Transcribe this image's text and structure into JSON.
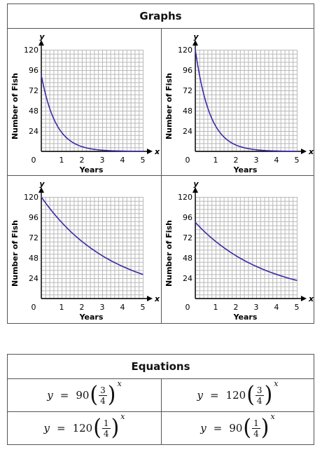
{
  "graphs_table": {
    "header": "Graphs"
  },
  "equations_table": {
    "header": "Equations",
    "equations": [
      {
        "lhs": "y",
        "eq": "=",
        "coef": "90",
        "num": "3",
        "den": "4",
        "exp": "x"
      },
      {
        "lhs": "y",
        "eq": "=",
        "coef": "120",
        "num": "3",
        "den": "4",
        "exp": "x"
      },
      {
        "lhs": "y",
        "eq": "=",
        "coef": "120",
        "num": "1",
        "den": "4",
        "exp": "x"
      },
      {
        "lhs": "y",
        "eq": "=",
        "coef": "90",
        "num": "1",
        "den": "4",
        "exp": "x"
      }
    ]
  },
  "chart_data": [
    {
      "type": "line",
      "xlabel": "Years",
      "ylabel": "Number of Fish",
      "x_axis_letter": "x",
      "y_axis_letter": "y",
      "xlim": [
        0,
        5
      ],
      "ylim": [
        0,
        120
      ],
      "grid": true,
      "x_ticks": [
        "0",
        "1",
        "2",
        "3",
        "4",
        "5"
      ],
      "y_ticks": [
        "24",
        "48",
        "72",
        "96",
        "120"
      ],
      "line_color": "#3b2aa6",
      "x": [
        0,
        0.5,
        1,
        1.5,
        2,
        2.5,
        3,
        3.5,
        4,
        4.5,
        5
      ],
      "values": [
        90,
        45,
        22.5,
        11.3,
        5.6,
        2.8,
        1.4,
        0.7,
        0.4,
        0.2,
        0.1
      ]
    },
    {
      "type": "line",
      "xlabel": "Years",
      "ylabel": "Number of Fish",
      "x_axis_letter": "x",
      "y_axis_letter": "y",
      "xlim": [
        0,
        5
      ],
      "ylim": [
        0,
        120
      ],
      "grid": true,
      "x_ticks": [
        "0",
        "1",
        "2",
        "3",
        "4",
        "5"
      ],
      "y_ticks": [
        "24",
        "48",
        "72",
        "96",
        "120"
      ],
      "line_color": "#3b2aa6",
      "x": [
        0,
        0.5,
        1,
        1.5,
        2,
        2.5,
        3,
        3.5,
        4,
        4.5,
        5
      ],
      "values": [
        120,
        60,
        30,
        15,
        7.5,
        3.8,
        1.9,
        0.9,
        0.5,
        0.2,
        0.1
      ]
    },
    {
      "type": "line",
      "xlabel": "Years",
      "ylabel": "Number of Fish",
      "x_axis_letter": "x",
      "y_axis_letter": "y",
      "xlim": [
        0,
        5
      ],
      "ylim": [
        0,
        120
      ],
      "grid": true,
      "x_ticks": [
        "0",
        "1",
        "2",
        "3",
        "4",
        "5"
      ],
      "y_ticks": [
        "24",
        "48",
        "72",
        "96",
        "120"
      ],
      "line_color": "#3b2aa6",
      "x": [
        0,
        0.5,
        1,
        1.5,
        2,
        2.5,
        3,
        3.5,
        4,
        4.5,
        5
      ],
      "values": [
        120,
        103.9,
        90,
        77.9,
        67.5,
        58.5,
        50.6,
        43.8,
        38,
        32.9,
        28.5
      ]
    },
    {
      "type": "line",
      "xlabel": "Years",
      "ylabel": "Number of Fish",
      "x_axis_letter": "x",
      "y_axis_letter": "y",
      "xlim": [
        0,
        5
      ],
      "ylim": [
        0,
        120
      ],
      "grid": true,
      "x_ticks": [
        "0",
        "1",
        "2",
        "3",
        "4",
        "5"
      ],
      "y_ticks": [
        "24",
        "48",
        "72",
        "96",
        "120"
      ],
      "line_color": "#3b2aa6",
      "x": [
        0,
        0.5,
        1,
        1.5,
        2,
        2.5,
        3,
        3.5,
        4,
        4.5,
        5
      ],
      "values": [
        90,
        77.9,
        67.5,
        58.5,
        50.6,
        43.8,
        38,
        32.9,
        28.5,
        24.7,
        21.4
      ]
    }
  ]
}
